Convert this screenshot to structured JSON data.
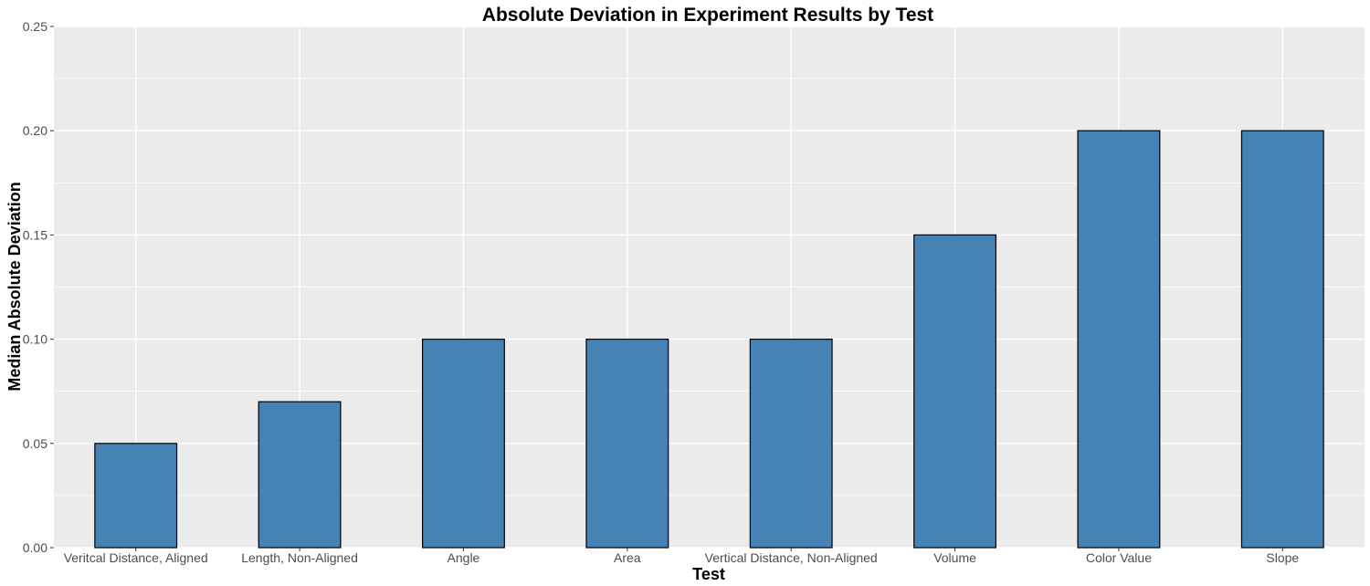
{
  "chart_data": {
    "type": "bar",
    "title": "Absolute Deviation in Experiment Results by Test",
    "xlabel": "Test",
    "ylabel": "Median Absolute Deviation",
    "categories": [
      "Veritcal Distance, Aligned",
      "Length, Non-Aligned",
      "Angle",
      "Area",
      "Vertical Distance, Non-Aligned",
      "Volume",
      "Color Value",
      "Slope"
    ],
    "values": [
      0.05,
      0.07,
      0.1,
      0.1,
      0.1,
      0.15,
      0.2,
      0.2
    ],
    "ylim": [
      0,
      0.25
    ],
    "yticks": [
      "0.00",
      "0.05",
      "0.10",
      "0.15",
      "0.20",
      "0.25"
    ],
    "grid": true,
    "colors": {
      "bar_fill": "#4682b4",
      "bar_outline": "#000000",
      "panel_background": "#ebebeb",
      "gridline": "#ffffff"
    }
  }
}
